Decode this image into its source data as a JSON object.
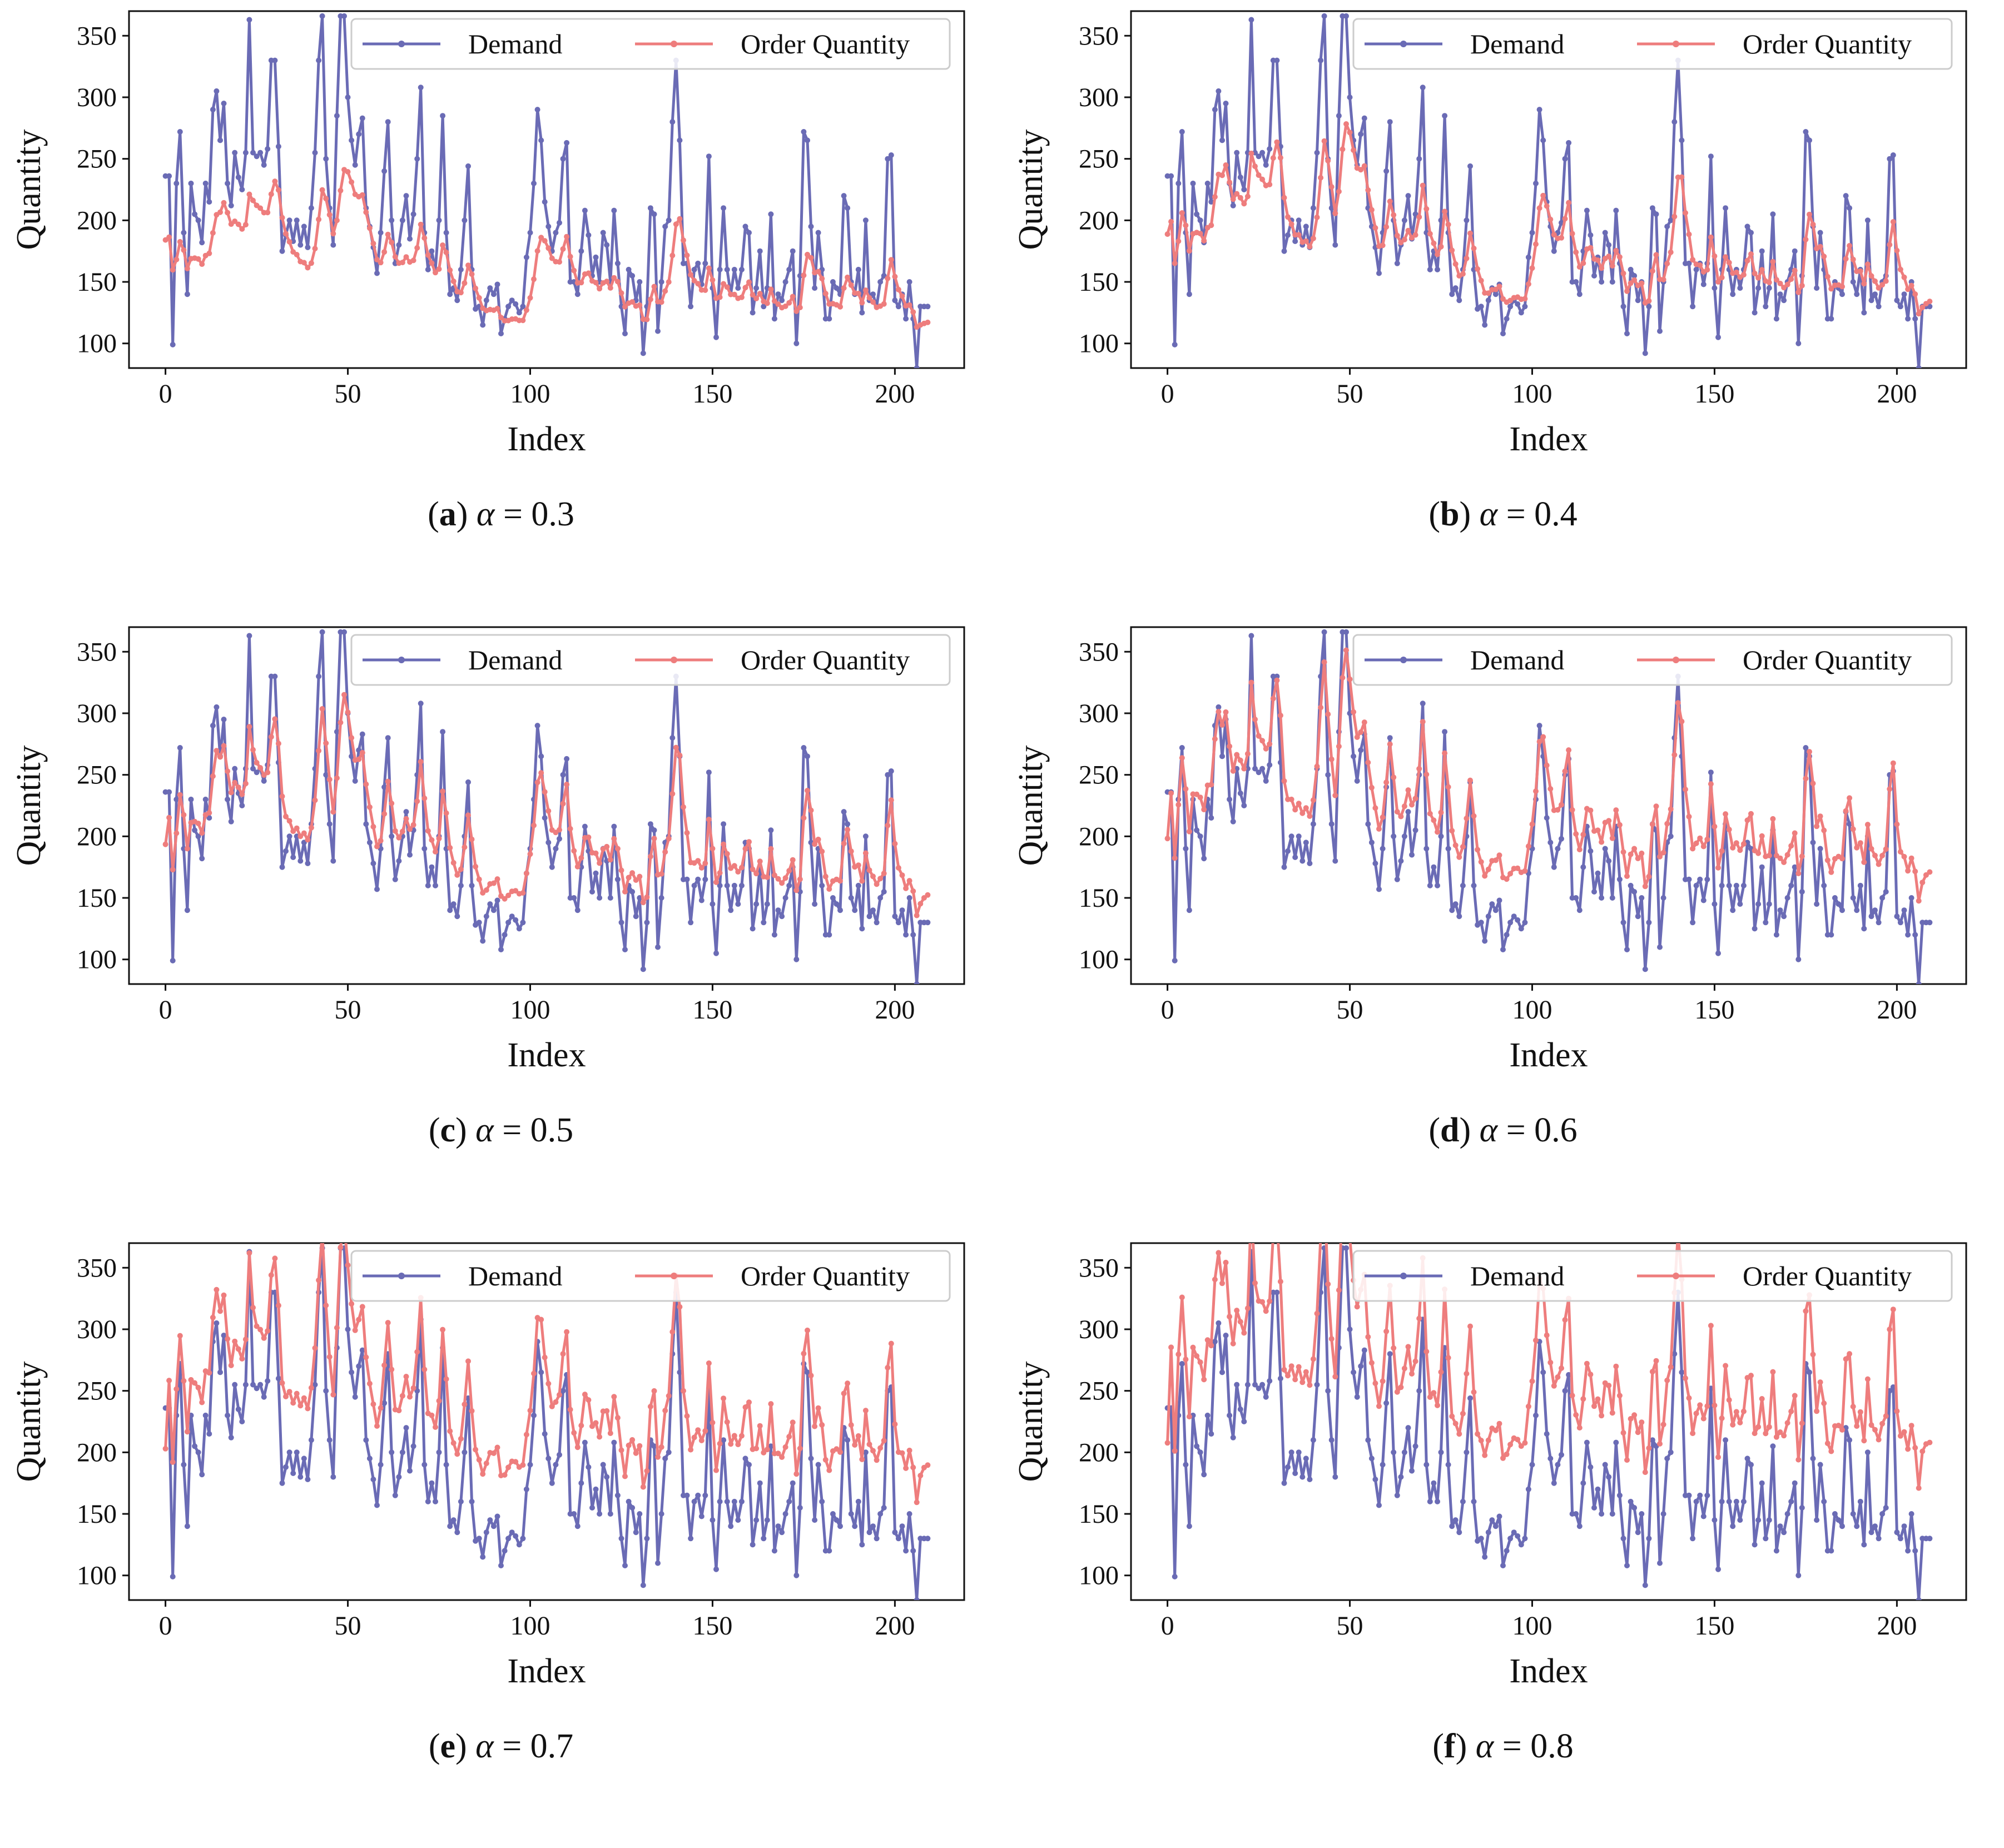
{
  "figure": {
    "panels": [
      {
        "letter": "a",
        "param": "α",
        "eq": "=",
        "value": "0.3",
        "alpha": 0.3
      },
      {
        "letter": "b",
        "param": "α",
        "eq": "=",
        "value": "0.4",
        "alpha": 0.4
      },
      {
        "letter": "c",
        "param": "α",
        "eq": "=",
        "value": "0.5",
        "alpha": 0.5
      },
      {
        "letter": "d",
        "param": "α",
        "eq": "=",
        "value": "0.6",
        "alpha": 0.6
      },
      {
        "letter": "e",
        "param": "α",
        "eq": "=",
        "value": "0.7",
        "alpha": 0.7
      },
      {
        "letter": "f",
        "param": "α",
        "eq": "=",
        "value": "0.8",
        "alpha": 0.8
      }
    ]
  },
  "chart_data": {
    "type": "line",
    "xlabel": "Index",
    "ylabel": "Quantity",
    "xlim": [
      -10,
      219
    ],
    "ylim": [
      80,
      370
    ],
    "xticks": [
      0,
      50,
      100,
      150,
      200
    ],
    "yticks": [
      100,
      150,
      200,
      250,
      300,
      350
    ],
    "legend": {
      "placement": "top-right",
      "columns": 2
    },
    "grid": false,
    "colors": {
      "demand": "#6a6bb5",
      "order": "#ee7d7d"
    },
    "series": [
      {
        "key": "demand",
        "name": "Demand"
      },
      {
        "key": "order",
        "name": "Order Quantity"
      }
    ],
    "demand_anchors": [
      [
        0,
        236
      ],
      [
        1,
        236
      ],
      [
        2,
        99
      ],
      [
        3,
        230
      ],
      [
        4,
        272
      ],
      [
        5,
        190
      ],
      [
        6,
        140
      ],
      [
        7,
        230
      ],
      [
        8,
        205
      ],
      [
        9,
        200
      ],
      [
        10,
        182
      ],
      [
        11,
        230
      ],
      [
        12,
        215
      ],
      [
        13,
        290
      ],
      [
        14,
        305
      ],
      [
        15,
        265
      ],
      [
        16,
        295
      ],
      [
        17,
        230
      ],
      [
        18,
        212
      ],
      [
        19,
        255
      ],
      [
        20,
        235
      ],
      [
        21,
        225
      ],
      [
        22,
        255
      ],
      [
        23,
        363
      ],
      [
        24,
        255
      ],
      [
        25,
        252
      ],
      [
        26,
        255
      ],
      [
        27,
        245
      ],
      [
        28,
        258
      ],
      [
        29,
        330
      ],
      [
        30,
        330
      ],
      [
        31,
        260
      ],
      [
        32,
        175
      ],
      [
        33,
        188
      ],
      [
        34,
        200
      ],
      [
        35,
        183
      ],
      [
        36,
        200
      ],
      [
        37,
        180
      ],
      [
        38,
        195
      ],
      [
        39,
        178
      ],
      [
        40,
        210
      ],
      [
        41,
        255
      ],
      [
        42,
        330
      ],
      [
        43,
        366
      ],
      [
        44,
        250
      ],
      [
        45,
        210
      ],
      [
        46,
        180
      ],
      [
        47,
        285
      ],
      [
        48,
        366
      ],
      [
        49,
        366
      ],
      [
        50,
        300
      ],
      [
        51,
        265
      ],
      [
        52,
        245
      ],
      [
        53,
        270
      ],
      [
        54,
        283
      ],
      [
        55,
        210
      ],
      [
        56,
        195
      ],
      [
        57,
        178
      ],
      [
        58,
        157
      ],
      [
        59,
        190
      ],
      [
        60,
        240
      ],
      [
        61,
        280
      ],
      [
        62,
        200
      ],
      [
        63,
        165
      ],
      [
        64,
        180
      ],
      [
        65,
        200
      ],
      [
        66,
        220
      ],
      [
        67,
        185
      ],
      [
        68,
        205
      ],
      [
        69,
        250
      ],
      [
        70,
        308
      ],
      [
        71,
        190
      ],
      [
        72,
        160
      ],
      [
        73,
        175
      ],
      [
        74,
        160
      ],
      [
        75,
        200
      ],
      [
        76,
        285
      ],
      [
        77,
        190
      ],
      [
        78,
        140
      ],
      [
        79,
        145
      ],
      [
        80,
        135
      ],
      [
        81,
        160
      ],
      [
        82,
        200
      ],
      [
        83,
        244
      ],
      [
        84,
        160
      ],
      [
        85,
        128
      ],
      [
        86,
        130
      ],
      [
        87,
        115
      ],
      [
        88,
        135
      ],
      [
        89,
        145
      ],
      [
        90,
        140
      ],
      [
        91,
        148
      ],
      [
        92,
        108
      ],
      [
        93,
        120
      ],
      [
        94,
        130
      ],
      [
        95,
        135
      ],
      [
        96,
        132
      ],
      [
        97,
        125
      ],
      [
        98,
        130
      ],
      [
        99,
        170
      ],
      [
        100,
        190
      ],
      [
        101,
        230
      ],
      [
        102,
        290
      ],
      [
        103,
        265
      ],
      [
        104,
        215
      ],
      [
        105,
        195
      ],
      [
        106,
        175
      ],
      [
        107,
        190
      ],
      [
        108,
        198
      ],
      [
        109,
        250
      ],
      [
        110,
        263
      ],
      [
        111,
        150
      ],
      [
        112,
        150
      ],
      [
        113,
        140
      ],
      [
        114,
        175
      ],
      [
        115,
        208
      ],
      [
        116,
        188
      ],
      [
        117,
        155
      ],
      [
        118,
        170
      ],
      [
        119,
        150
      ],
      [
        120,
        190
      ],
      [
        121,
        180
      ],
      [
        122,
        150
      ],
      [
        123,
        208
      ],
      [
        124,
        165
      ],
      [
        125,
        130
      ],
      [
        126,
        108
      ],
      [
        127,
        160
      ],
      [
        128,
        155
      ],
      [
        129,
        135
      ],
      [
        130,
        150
      ],
      [
        131,
        92
      ],
      [
        132,
        130
      ],
      [
        133,
        210
      ],
      [
        134,
        205
      ],
      [
        135,
        110
      ],
      [
        136,
        150
      ],
      [
        137,
        195
      ],
      [
        138,
        200
      ],
      [
        139,
        280
      ],
      [
        140,
        330
      ],
      [
        141,
        265
      ],
      [
        142,
        165
      ],
      [
        143,
        165
      ],
      [
        144,
        130
      ],
      [
        145,
        160
      ],
      [
        146,
        165
      ],
      [
        147,
        148
      ],
      [
        148,
        165
      ],
      [
        149,
        252
      ],
      [
        150,
        145
      ],
      [
        151,
        105
      ],
      [
        152,
        160
      ],
      [
        153,
        210
      ],
      [
        154,
        160
      ],
      [
        155,
        140
      ],
      [
        156,
        160
      ],
      [
        157,
        145
      ],
      [
        158,
        160
      ],
      [
        159,
        195
      ],
      [
        160,
        190
      ],
      [
        161,
        125
      ],
      [
        162,
        145
      ],
      [
        163,
        175
      ],
      [
        164,
        130
      ],
      [
        165,
        145
      ],
      [
        166,
        205
      ],
      [
        167,
        120
      ],
      [
        168,
        140
      ],
      [
        169,
        135
      ],
      [
        170,
        150
      ],
      [
        171,
        160
      ],
      [
        172,
        175
      ],
      [
        173,
        100
      ],
      [
        174,
        155
      ],
      [
        175,
        272
      ],
      [
        176,
        265
      ],
      [
        177,
        195
      ],
      [
        178,
        145
      ],
      [
        179,
        190
      ],
      [
        180,
        160
      ],
      [
        181,
        120
      ],
      [
        182,
        120
      ],
      [
        183,
        150
      ],
      [
        184,
        145
      ],
      [
        185,
        140
      ],
      [
        186,
        220
      ],
      [
        187,
        210
      ],
      [
        188,
        150
      ],
      [
        189,
        140
      ],
      [
        190,
        160
      ],
      [
        191,
        125
      ],
      [
        192,
        200
      ],
      [
        193,
        135
      ],
      [
        194,
        140
      ],
      [
        195,
        130
      ],
      [
        196,
        150
      ],
      [
        197,
        155
      ],
      [
        198,
        250
      ],
      [
        199,
        253
      ],
      [
        200,
        135
      ],
      [
        201,
        130
      ],
      [
        202,
        140
      ],
      [
        203,
        120
      ],
      [
        204,
        150
      ],
      [
        205,
        120
      ],
      [
        206,
        80
      ],
      [
        207,
        130
      ],
      [
        208,
        130
      ],
      [
        209,
        130
      ]
    ]
  }
}
